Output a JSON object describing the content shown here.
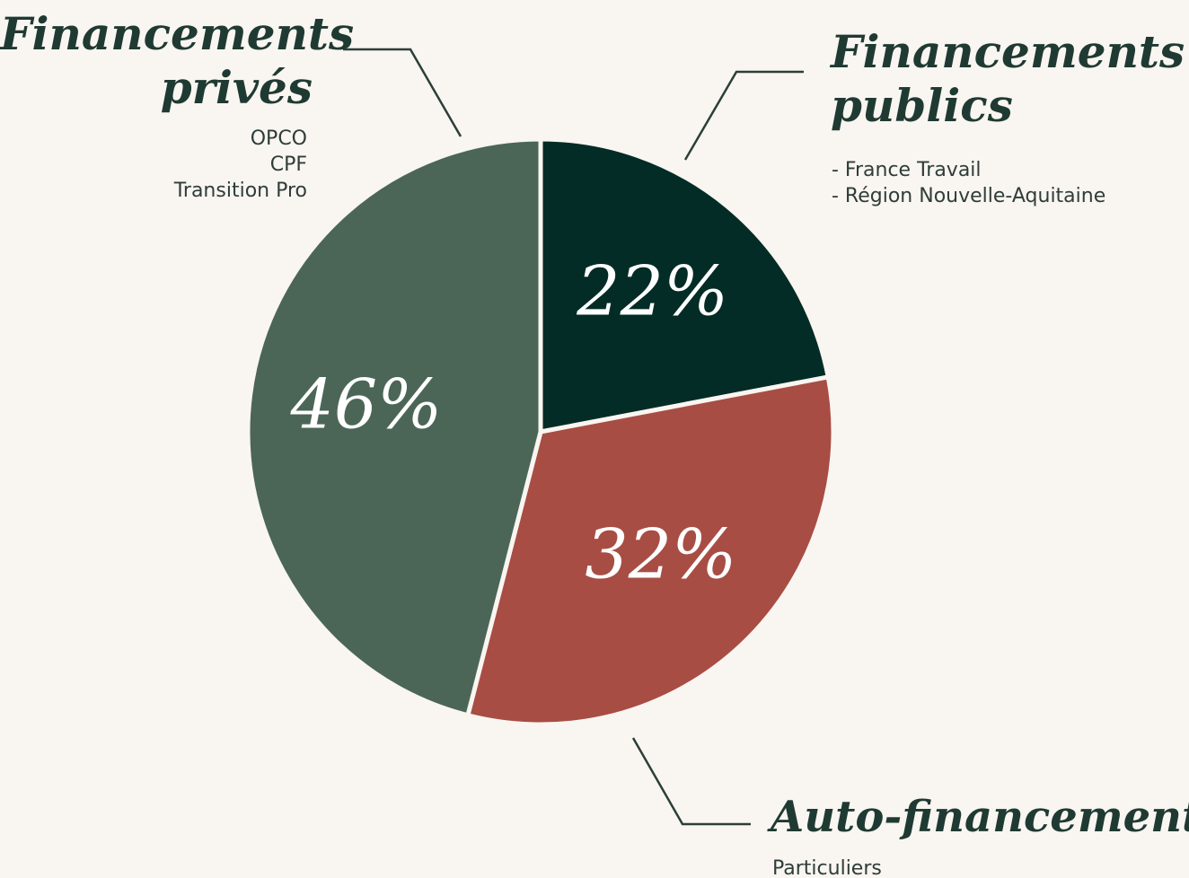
{
  "chart_data": {
    "type": "pie",
    "categories": [
      "Financements publics",
      "Auto-financements",
      "Financements privés"
    ],
    "values": [
      22,
      32,
      46
    ],
    "value_labels": [
      "22%",
      "32%",
      "46%"
    ],
    "colors": [
      "#022c25",
      "#a84d44",
      "#4b6657"
    ],
    "descriptions": [
      [
        "- France Travail",
        "- Région Nouvelle-Aquitaine"
      ],
      [
        "Particuliers"
      ],
      [
        "OPCO",
        "CPF",
        "Transition Pro"
      ]
    ]
  }
}
